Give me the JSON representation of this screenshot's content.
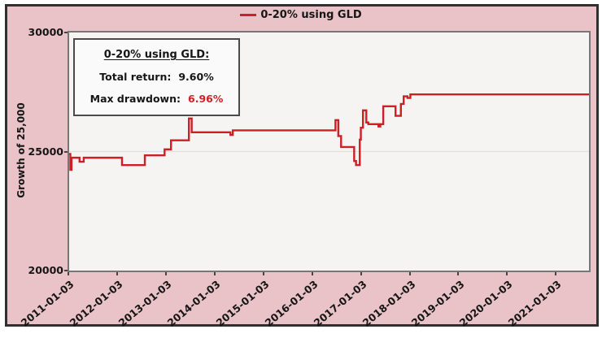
{
  "legend": {
    "label": "0-20% using GLD"
  },
  "y_axis": {
    "title": "Growth of 25,000"
  },
  "info_box": {
    "title": "0-20% using GLD:",
    "rows": [
      {
        "label": "Total return:",
        "value": "9.60%"
      },
      {
        "label": "Max drawdown:",
        "value": "6.96%"
      }
    ]
  },
  "colors": {
    "background_pink": "#e9c3c7",
    "frame_border": "#303030",
    "plot_background": "#f6f4f2",
    "plot_border": "#777777",
    "grid_line": "#e2dfdf",
    "series_red": "#cb2026",
    "drawdown_value_red": "#d21f26",
    "text": "#161616"
  },
  "chart_data": {
    "type": "line",
    "title": "0-20% using GLD",
    "xlabel": "",
    "ylabel": "Growth of 25,000",
    "ylim": [
      20000,
      30000
    ],
    "yticks": [
      30000,
      25000,
      20000
    ],
    "xlim": [
      "2011-01-03",
      "2021-09-01"
    ],
    "xticks": [
      "2011-01-03",
      "2012-01-03",
      "2013-01-03",
      "2014-01-03",
      "2015-01-03",
      "2016-01-03",
      "2017-01-03",
      "2018-01-03",
      "2019-01-03",
      "2020-01-03",
      "2021-01-03"
    ],
    "grid_values": [
      25000
    ],
    "legend_position": "top-center",
    "annotations": {
      "total_return_pct": 9.6,
      "max_drawdown_pct": 6.96,
      "start_value": 25000,
      "end_value": 27400
    },
    "series": [
      {
        "name": "0-20% using GLD",
        "color": "#cb2026",
        "step": "after",
        "points": [
          [
            "2011-01-03",
            24900
          ],
          [
            "2011-01-12",
            24230
          ],
          [
            "2011-01-21",
            24740
          ],
          [
            "2011-03-22",
            24570
          ],
          [
            "2011-04-22",
            24740
          ],
          [
            "2012-02-03",
            24430
          ],
          [
            "2012-07-23",
            24840
          ],
          [
            "2012-12-18",
            25090
          ],
          [
            "2013-02-04",
            25470
          ],
          [
            "2013-06-18",
            26390
          ],
          [
            "2013-07-09",
            25810
          ],
          [
            "2014-04-25",
            25700
          ],
          [
            "2014-05-13",
            25890
          ],
          [
            "2016-06-20",
            26320
          ],
          [
            "2016-07-11",
            25650
          ],
          [
            "2016-08-01",
            25190
          ],
          [
            "2016-11-07",
            24600
          ],
          [
            "2016-11-21",
            24430
          ],
          [
            "2016-12-19",
            25500
          ],
          [
            "2016-12-27",
            26000
          ],
          [
            "2017-01-12",
            26730
          ],
          [
            "2017-02-06",
            26220
          ],
          [
            "2017-02-21",
            26150
          ],
          [
            "2017-05-08",
            26050
          ],
          [
            "2017-05-22",
            26150
          ],
          [
            "2017-06-13",
            26900
          ],
          [
            "2017-09-13",
            26500
          ],
          [
            "2017-10-23",
            27000
          ],
          [
            "2017-11-13",
            27320
          ],
          [
            "2017-12-11",
            27250
          ],
          [
            "2018-01-02",
            27400
          ],
          [
            "2021-09-01",
            27400
          ]
        ]
      }
    ]
  }
}
